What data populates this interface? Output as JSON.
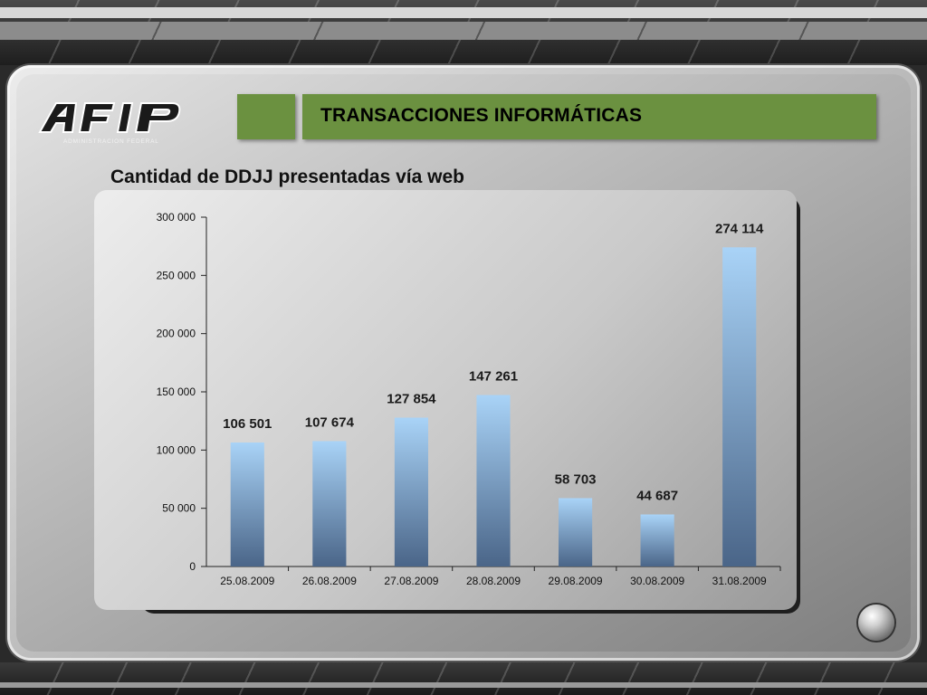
{
  "header": {
    "title": "TRANSACCIONES INFORMÁTICAS",
    "subtitle": "Cantidad de DDJJ presentadas vía web",
    "logo_text": "AFIP",
    "logo_subtext": "ADMINISTRACION FEDERAL",
    "accent_color": "#6b9140"
  },
  "chart_data": {
    "type": "bar",
    "categories": [
      "25.08.2009",
      "26.08.2009",
      "27.08.2009",
      "28.08.2009",
      "29.08.2009",
      "30.08.2009",
      "31.08.2009"
    ],
    "values": [
      106501,
      107674,
      127854,
      147261,
      58703,
      44687,
      274114
    ],
    "value_labels": [
      "106 501",
      "107 674",
      "127 854",
      "147 261",
      "58 703",
      "44 687",
      "274 114"
    ],
    "ylim": [
      0,
      300000
    ],
    "yticks": [
      0,
      50000,
      100000,
      150000,
      200000,
      250000,
      300000
    ],
    "ytick_labels": [
      "0",
      "50 000",
      "100 000",
      "150 000",
      "200 000",
      "250 000",
      "300 000"
    ],
    "grid": false,
    "legend": "none",
    "bar_color_top": "#a9d3f7",
    "bar_color_bottom": "#4a6588"
  }
}
